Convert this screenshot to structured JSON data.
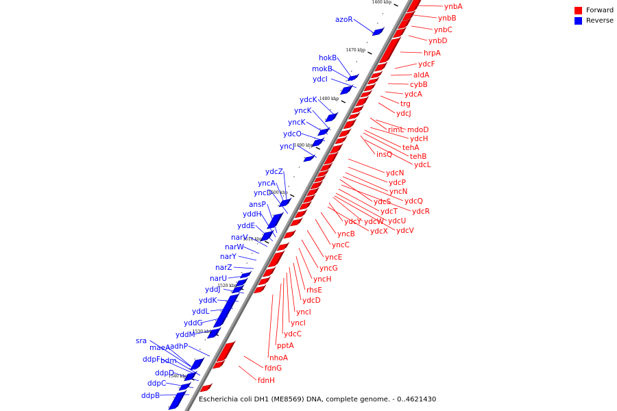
{
  "legend": {
    "forward_label": "Forward",
    "reverse_label": "Reverse",
    "forward_color": "#ff0000",
    "reverse_color": "#0000ff"
  },
  "caption": "Escherichia coli DH1 (ME8569) DNA, complete genome. - 0..4621430",
  "kbp_ticks": [
    "1460 kbp",
    "1470 kbp",
    "1480 kbp",
    "1490 kbp",
    "1500 kbp",
    "1510 kbp",
    "1520 kbp",
    "1530 kbp",
    "1540 kbp"
  ],
  "forward_genes": [
    "ynbA",
    "ynbB",
    "ynbC",
    "ynbD",
    "hrpA",
    "ydcF",
    "aldA",
    "cybB",
    "ydcA",
    "trg",
    "ydcJ",
    "rimL",
    "mdoD",
    "ydcH",
    "tehA",
    "tehB",
    "insQ",
    "ydcL",
    "ydcN",
    "ydcP",
    "yncN",
    "ydcQ",
    "ydcS",
    "ydcR",
    "ydcT",
    "ydcU",
    "ydcY",
    "ydcW",
    "ydcX",
    "ydcV",
    "yncB",
    "yncC",
    "yncE",
    "yncG",
    "yncH",
    "rhsE",
    "ydcD",
    "yncI",
    "yncI",
    "ydcC",
    "pptA",
    "nhoA",
    "fdnG",
    "fdnH"
  ],
  "reverse_genes": [
    "azoR",
    "hokB",
    "mokB",
    "ydcI",
    "ydcK",
    "yncK",
    "yncK",
    "ydcO",
    "yncJ",
    "ydcZ",
    "yncA",
    "yncD",
    "ansP",
    "yddH",
    "yddE",
    "narV",
    "narW",
    "narY",
    "narZ",
    "narU",
    "yddJ",
    "yddK",
    "yddL",
    "yddG",
    "yddM",
    "adhP",
    "sra",
    "maeA",
    "bdm",
    "ddpF",
    "ddpD",
    "ddpC",
    "ddpB"
  ]
}
